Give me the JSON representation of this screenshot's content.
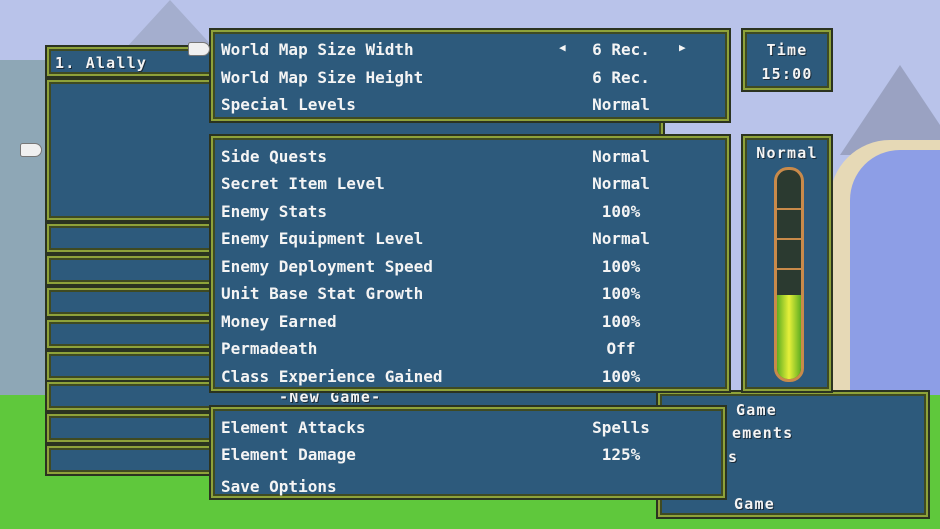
{
  "party_panel": {
    "title": "1. Alally",
    "new_game_label": "-New Game-"
  },
  "map_settings": [
    {
      "label": "World Map Size Width",
      "value": "6 Rec.",
      "arrows": true
    },
    {
      "label": "World Map Size Height",
      "value": "6 Rec."
    },
    {
      "label": "Special Levels",
      "value": "Normal"
    }
  ],
  "game_settings": [
    {
      "label": "Side Quests",
      "value": "Normal"
    },
    {
      "label": "Secret Item Level",
      "value": "Normal"
    },
    {
      "label": "Enemy Stats",
      "value": "100%"
    },
    {
      "label": "Enemy Equipment Level",
      "value": "Normal"
    },
    {
      "label": "Enemy Deployment Speed",
      "value": "100%"
    },
    {
      "label": "Unit Base Stat Growth",
      "value": "100%"
    },
    {
      "label": "Money Earned",
      "value": "100%"
    },
    {
      "label": "Permadeath",
      "value": "Off"
    },
    {
      "label": "Class Experience Gained",
      "value": "100%"
    }
  ],
  "element_settings": [
    {
      "label": "Element Attacks",
      "value": "Spells"
    },
    {
      "label": "Element Damage",
      "value": "125%"
    }
  ],
  "save_options": "Save Options",
  "time": {
    "label": "Time",
    "value": "15:00"
  },
  "difficulty": {
    "label": "Normal",
    "fill_fraction": 0.4,
    "fill_color": "#b8e02a"
  },
  "main_menu_partial": [
    "Game",
    "ements",
    "s",
    "Game"
  ],
  "arrows": {
    "left": "◀",
    "right": "▶"
  }
}
